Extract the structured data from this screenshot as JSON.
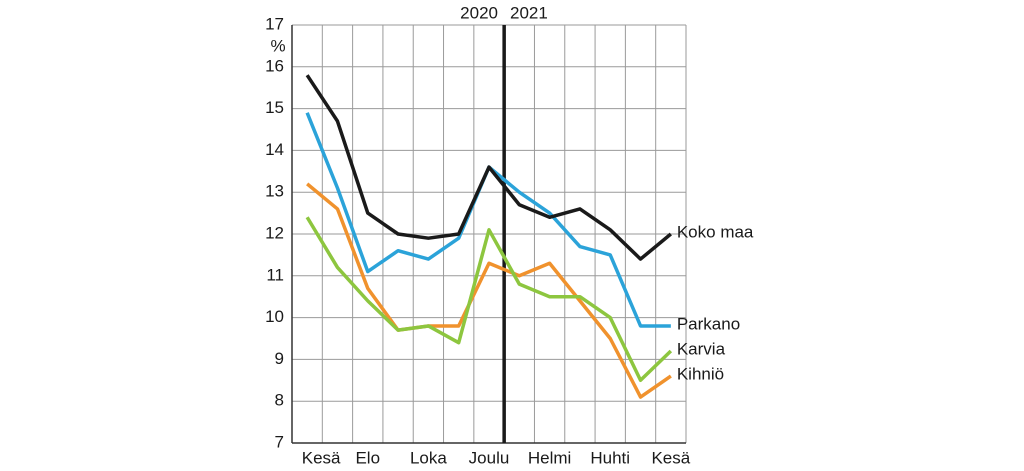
{
  "chart_data": {
    "type": "line",
    "y_label": "%",
    "year_labels": [
      "2020",
      "2021"
    ],
    "categories": [
      "Kesä",
      null,
      "Elo",
      null,
      "Loka",
      null,
      "Joulu",
      null,
      "Helmi",
      null,
      "Huhti",
      null,
      "Kesä"
    ],
    "ylim": [
      7,
      17
    ],
    "yticks": [
      7,
      8,
      9,
      10,
      11,
      12,
      13,
      14,
      15,
      16,
      17
    ],
    "grid": true,
    "series": [
      {
        "name": "Koko maa",
        "color": "#1a1a1a",
        "values": [
          15.8,
          14.7,
          12.5,
          12.0,
          11.9,
          12.0,
          13.6,
          12.7,
          12.4,
          12.6,
          12.1,
          11.4,
          12.0
        ]
      },
      {
        "name": "Parkano",
        "color": "#2ba3d9",
        "values": [
          14.9,
          13.1,
          11.1,
          11.6,
          11.4,
          11.9,
          13.6,
          13.0,
          12.5,
          11.7,
          11.5,
          9.8,
          9.8
        ]
      },
      {
        "name": "Karvia",
        "color": "#8dc63f",
        "values": [
          12.4,
          11.2,
          10.4,
          9.7,
          9.8,
          9.4,
          12.1,
          10.8,
          10.5,
          10.5,
          10.0,
          8.5,
          9.2
        ]
      },
      {
        "name": "Kihniö",
        "color": "#f0922d",
        "values": [
          13.2,
          12.6,
          10.7,
          9.7,
          9.8,
          9.8,
          11.3,
          11.0,
          11.3,
          10.4,
          9.5,
          8.1,
          8.6
        ]
      }
    ]
  }
}
